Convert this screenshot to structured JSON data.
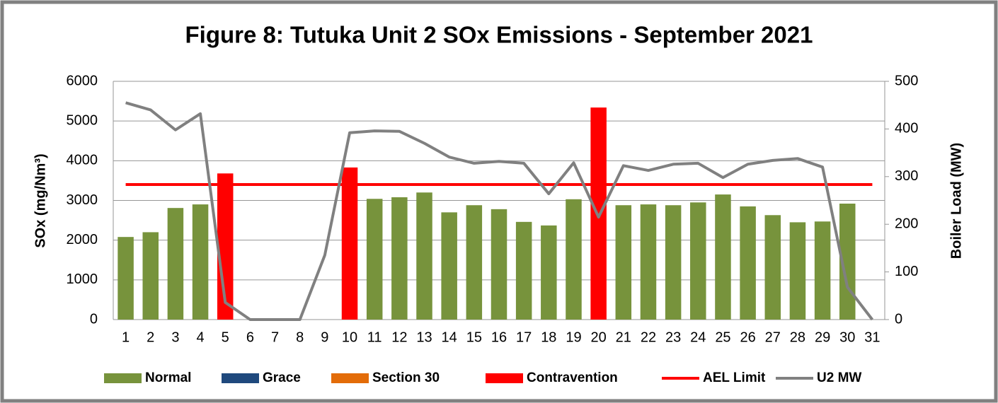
{
  "chart_data": {
    "type": "bar",
    "title": "Figure 8: Tutuka Unit 2 SOx Emissions -  September 2021",
    "y_label": "SOx (mg/Nm³)",
    "y2_label": "Boiler Load (MW)",
    "categories": [
      "1",
      "2",
      "3",
      "4",
      "5",
      "6",
      "7",
      "8",
      "9",
      "10",
      "11",
      "12",
      "13",
      "14",
      "15",
      "16",
      "17",
      "18",
      "19",
      "20",
      "21",
      "22",
      "23",
      "24",
      "25",
      "26",
      "27",
      "28",
      "29",
      "30",
      "31"
    ],
    "series": [
      {
        "name": "Normal",
        "type": "bar",
        "color": "#77933c",
        "values": [
          2080,
          2200,
          2810,
          2900,
          null,
          null,
          null,
          null,
          null,
          null,
          3040,
          3080,
          3200,
          2700,
          2880,
          2780,
          2460,
          2370,
          3030,
          null,
          2880,
          2900,
          2880,
          2950,
          3150,
          2850,
          2630,
          2450,
          2470,
          2920,
          null
        ]
      },
      {
        "name": "Grace",
        "type": "bar",
        "color": "#1f497d",
        "values": [
          null,
          null,
          null,
          null,
          null,
          null,
          null,
          null,
          null,
          null,
          null,
          null,
          null,
          null,
          null,
          null,
          null,
          null,
          null,
          null,
          null,
          null,
          null,
          null,
          null,
          null,
          null,
          null,
          null,
          null,
          null
        ]
      },
      {
        "name": "Section 30",
        "type": "bar",
        "color": "#e36c09",
        "values": [
          null,
          null,
          null,
          null,
          null,
          null,
          null,
          null,
          null,
          null,
          null,
          null,
          null,
          null,
          null,
          null,
          null,
          null,
          null,
          null,
          null,
          null,
          null,
          null,
          null,
          null,
          null,
          null,
          null,
          null,
          null
        ]
      },
      {
        "name": "Contravention",
        "type": "bar",
        "color": "#ff0000",
        "values": [
          null,
          null,
          null,
          null,
          3680,
          null,
          null,
          null,
          null,
          3830,
          null,
          null,
          null,
          null,
          null,
          null,
          null,
          null,
          null,
          5340,
          null,
          null,
          null,
          null,
          null,
          null,
          null,
          null,
          null,
          null,
          null
        ]
      },
      {
        "name": "AEL Limit",
        "type": "line",
        "color": "#ff0000",
        "values": [
          3400,
          3400,
          3400,
          3400,
          3400,
          3400,
          3400,
          3400,
          3400,
          3400,
          3400,
          3400,
          3400,
          3400,
          3400,
          3400,
          3400,
          3400,
          3400,
          3400,
          3400,
          3400,
          3400,
          3400,
          3400,
          3400,
          3400,
          3400,
          3400,
          3400,
          3400
        ]
      },
      {
        "name": "U2 MW",
        "type": "line",
        "axis": "y2",
        "color": "#808080",
        "values": [
          455,
          440,
          398,
          432,
          36,
          0,
          0,
          0,
          135,
          392,
          396,
          395,
          370,
          341,
          328,
          332,
          328,
          264,
          329,
          215,
          323,
          313,
          326,
          328,
          298,
          326,
          334,
          338,
          320,
          68,
          0
        ]
      }
    ],
    "ylim": [
      0,
      6000
    ],
    "yticks": [
      0,
      1000,
      2000,
      3000,
      4000,
      5000,
      6000
    ],
    "y2lim": [
      0,
      500
    ],
    "y2ticks": [
      0,
      100,
      200,
      300,
      400,
      500
    ],
    "grid": true,
    "legend": "bottom"
  }
}
